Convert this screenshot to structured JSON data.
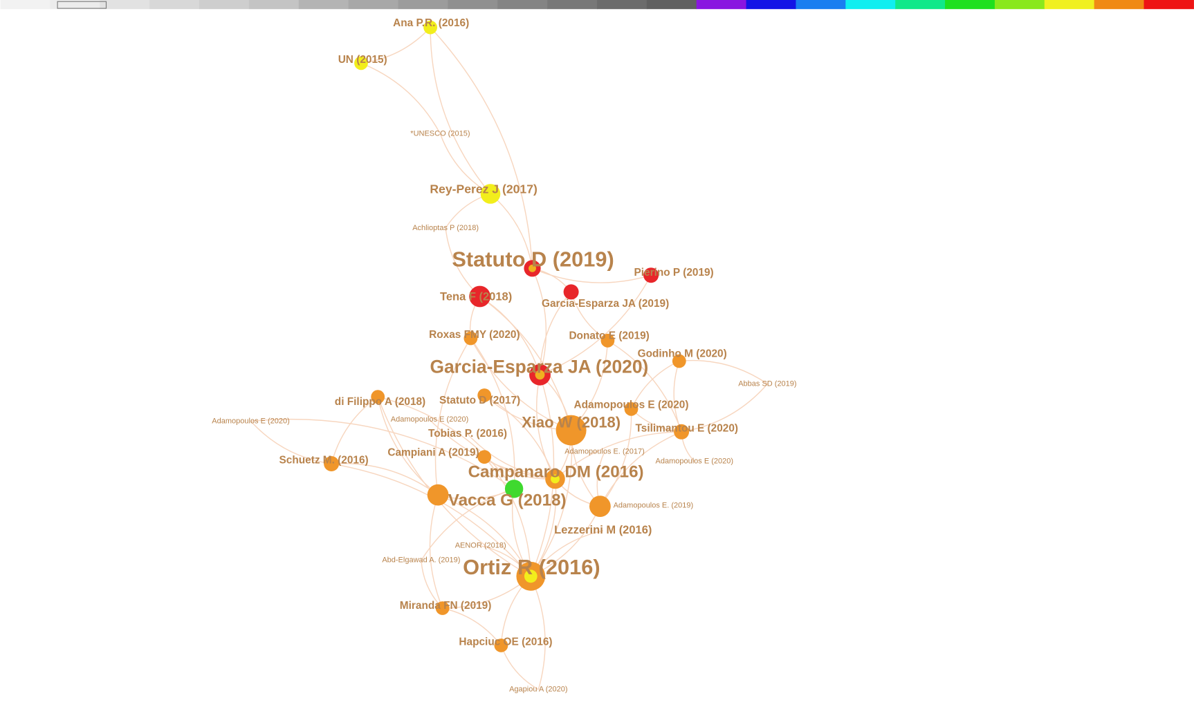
{
  "nodes": [
    {
      "label": "Ana P.R. (2016)",
      "color": "#f2ee1c"
    },
    {
      "label": "UN (2015)",
      "color": "#f2ee1c"
    },
    {
      "label": "*UNESCO (2015)"
    },
    {
      "label": "Rey-Perez J (2017)",
      "color": "#f2ee1c"
    },
    {
      "label": "Achlioptas P (2018)"
    },
    {
      "label": "Statuto D (2019)",
      "color": "#e8262a"
    },
    {
      "label": "Pierino P (2019)",
      "color": "#e8262a"
    },
    {
      "label": "Tena F (2018)",
      "color": "#e8262a"
    },
    {
      "label": "Garcia-Esparza JA (2019)",
      "color": "#e8262a"
    },
    {
      "label": "Roxas FMY (2020)",
      "color": "#f0962a"
    },
    {
      "label": "Donato E (2019)",
      "color": "#f0962a"
    },
    {
      "label": "Godinho M (2020)",
      "color": "#f0962a"
    },
    {
      "label": "Garcia-Esparza JA (2020)",
      "color": "#e8262a"
    },
    {
      "label": "Abbas SD (2019)"
    },
    {
      "label": "di Filippo A (2018)",
      "color": "#f0962a"
    },
    {
      "label": "Statuto D (2017)",
      "color": "#f0962a"
    },
    {
      "label": "Adamopoulos E (2020)",
      "color": "#f0962a"
    },
    {
      "label": "Adamopoulos E (2020)"
    },
    {
      "label": "Adamopoulos E (2020)"
    },
    {
      "label": "Xiao W (2018)",
      "color": "#f0962a"
    },
    {
      "label": "Tsilimantou E (2020)",
      "color": "#f0962a"
    },
    {
      "label": "Tobias P. (2016)"
    },
    {
      "label": "Schuetz M. (2016)",
      "color": "#f0962a"
    },
    {
      "label": "Campiani A (2019)",
      "color": "#f0962a"
    },
    {
      "label": "Adamopoulos E. (2017)"
    },
    {
      "label": "Adamopoulos E (2020)"
    },
    {
      "label": "Campanaro DM (2016)",
      "color": "#f0962a"
    },
    {
      "label": "Vacca G (2018)",
      "color": "#3fd92f"
    },
    {
      "label": "Adamopoulos E. (2019)",
      "color": "#f0962a"
    },
    {
      "label": "Lezzerini M (2016)"
    },
    {
      "label": "AENOR (2018)"
    },
    {
      "label": "Abd-Elgawad A. (2019)"
    },
    {
      "label": "Ortiz R (2016)",
      "color": "#f0962a"
    },
    {
      "label": "Miranda FN (2019)",
      "color": "#f0962a"
    },
    {
      "label": "Hapciuc OE (2016)",
      "color": "#f0962a"
    },
    {
      "label": "Agapiou A (2020)"
    }
  ]
}
